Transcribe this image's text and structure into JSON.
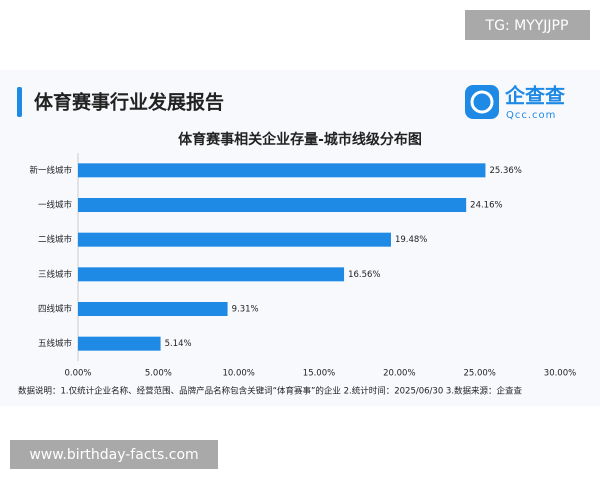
{
  "watermark": "TG: MYYJJPP",
  "header": {
    "title": "体育赛事行业发展报告",
    "logo_name": "企查查",
    "logo_url": "Qcc.com"
  },
  "chart_data": {
    "type": "hbar",
    "title": "体育赛事相关企业存量-城市线级分布图",
    "categories": [
      "新一线城市",
      "一线城市",
      "二线城市",
      "三线城市",
      "四线城市",
      "五线城市"
    ],
    "values": [
      25.36,
      24.16,
      19.48,
      16.56,
      9.31,
      5.14
    ],
    "value_labels": [
      "25.36%",
      "24.16%",
      "19.48%",
      "16.56%",
      "9.31%",
      "5.14%"
    ],
    "color": "#1f8ae6",
    "xlim": [
      0,
      30
    ],
    "xticks": [
      {
        "value": 0,
        "label": "0.00%"
      },
      {
        "value": 5,
        "label": "5.00%"
      },
      {
        "value": 10,
        "label": "10.00%"
      },
      {
        "value": 15,
        "label": "15.00%"
      },
      {
        "value": 20,
        "label": "20.00%"
      },
      {
        "value": 25,
        "label": "25.00%"
      },
      {
        "value": 30,
        "label": "30.00%"
      }
    ],
    "grid": false
  },
  "footnote": "数据说明：1.仅统计企业名称、经营范围、品牌产品名称包含关键词“体育赛事”的企业  2.统计时间：2025/06/30  3.数据来源：企查查",
  "footer_site": "www.birthday-facts.com"
}
